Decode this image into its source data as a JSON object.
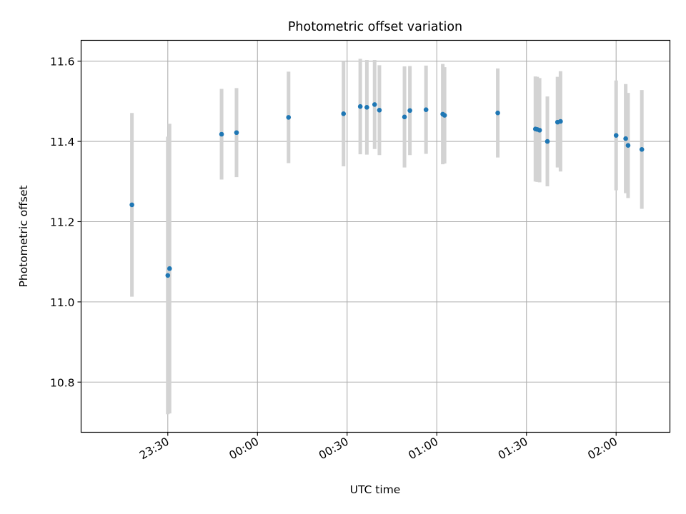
{
  "chart_data": {
    "type": "scatter",
    "title": "Photometric offset variation",
    "xlabel": "UTC time",
    "ylabel": "Photometric offset",
    "x_axis_type": "time",
    "xlim": [
      "23:01",
      "02:18"
    ],
    "ylim": [
      10.675,
      11.652
    ],
    "x_ticks": [
      "23:30",
      "00:00",
      "00:30",
      "01:00",
      "01:30",
      "02:00"
    ],
    "y_ticks": [
      "10.8",
      "11.0",
      "11.2",
      "11.4",
      "11.6"
    ],
    "grid": true,
    "series": [
      {
        "marker_color": "#1f77b4",
        "errorbar_color": "#d3d3d3",
        "points": [
          {
            "x": "23:18:00",
            "y": 11.242,
            "err": 0.229
          },
          {
            "x": "23:30:00",
            "y": 11.066,
            "err": 0.346
          },
          {
            "x": "23:30:36",
            "y": 11.083,
            "err": 0.361
          },
          {
            "x": "23:48:00",
            "y": 11.418,
            "err": 0.113
          },
          {
            "x": "23:53:00",
            "y": 11.422,
            "err": 0.111
          },
          {
            "x": "00:10:24",
            "y": 11.46,
            "err": 0.114
          },
          {
            "x": "00:28:48",
            "y": 11.469,
            "err": 0.131
          },
          {
            "x": "00:34:24",
            "y": 11.487,
            "err": 0.119
          },
          {
            "x": "00:36:36",
            "y": 11.485,
            "err": 0.118
          },
          {
            "x": "00:39:12",
            "y": 11.492,
            "err": 0.111
          },
          {
            "x": "00:40:48",
            "y": 11.478,
            "err": 0.112
          },
          {
            "x": "00:49:12",
            "y": 11.461,
            "err": 0.126
          },
          {
            "x": "00:51:00",
            "y": 11.477,
            "err": 0.111
          },
          {
            "x": "00:56:24",
            "y": 11.479,
            "err": 0.11
          },
          {
            "x": "01:02:00",
            "y": 11.468,
            "err": 0.125
          },
          {
            "x": "01:02:36",
            "y": 11.465,
            "err": 0.12
          },
          {
            "x": "01:20:24",
            "y": 11.471,
            "err": 0.111
          },
          {
            "x": "01:33:00",
            "y": 11.431,
            "err": 0.131
          },
          {
            "x": "01:33:36",
            "y": 11.43,
            "err": 0.131
          },
          {
            "x": "01:34:24",
            "y": 11.428,
            "err": 0.13
          },
          {
            "x": "01:37:00",
            "y": 11.4,
            "err": 0.112
          },
          {
            "x": "01:40:24",
            "y": 11.448,
            "err": 0.113
          },
          {
            "x": "01:41:24",
            "y": 11.45,
            "err": 0.125
          },
          {
            "x": "02:00:00",
            "y": 11.415,
            "err": 0.137
          },
          {
            "x": "02:03:12",
            "y": 11.407,
            "err": 0.136
          },
          {
            "x": "02:04:00",
            "y": 11.39,
            "err": 0.131
          },
          {
            "x": "02:08:36",
            "y": 11.38,
            "err": 0.148
          }
        ]
      }
    ]
  }
}
